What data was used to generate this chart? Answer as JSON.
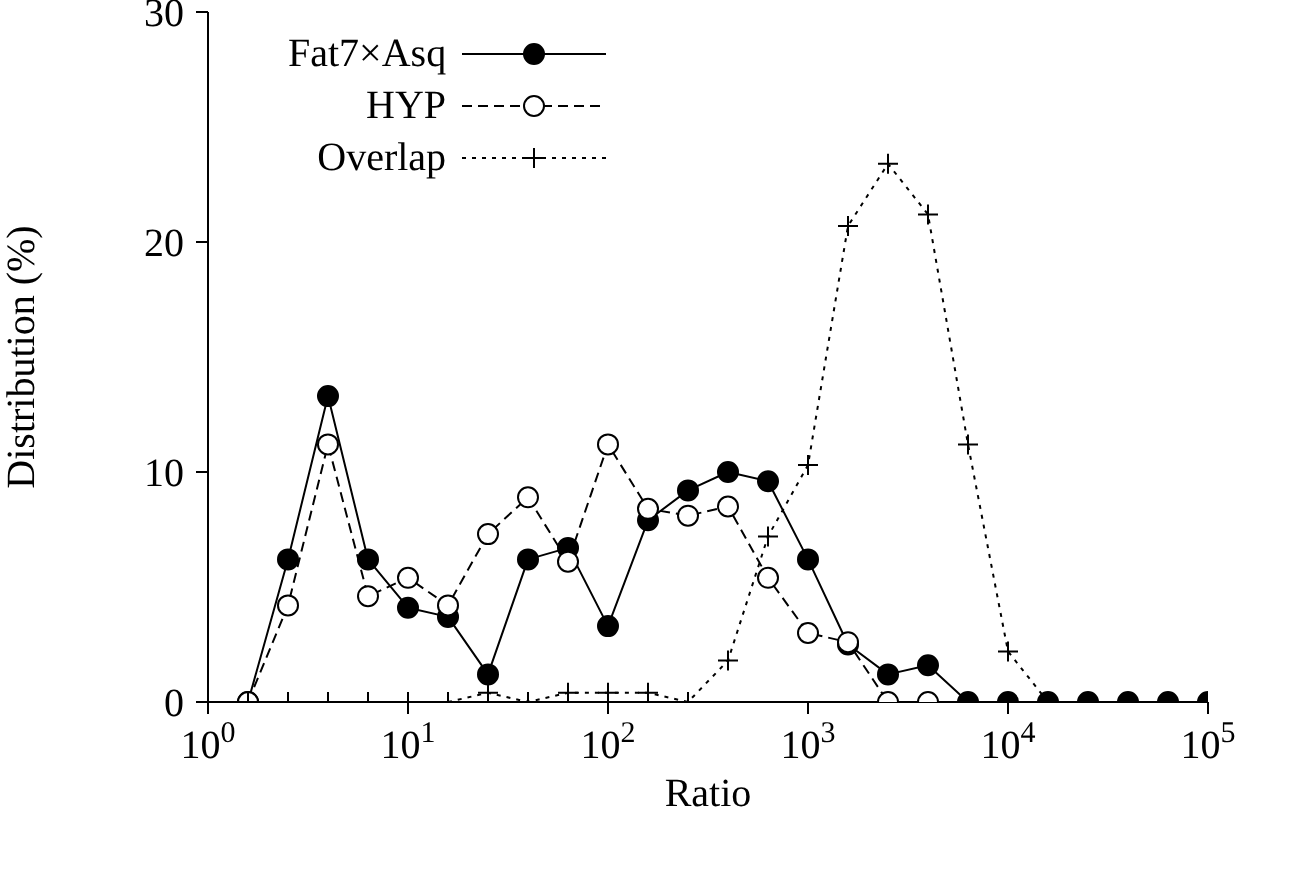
{
  "chart_data": {
    "type": "line",
    "xlabel": "Ratio",
    "ylabel": "Distribution (%)",
    "log": "x",
    "x": [
      1.585,
      2.512,
      3.981,
      6.31,
      10,
      15.85,
      25.12,
      39.81,
      63.1,
      100,
      158.5,
      251.2,
      398.1,
      631,
      1000,
      1585,
      2512,
      3981,
      6310,
      10000,
      15850,
      25120,
      39810,
      63100,
      100000
    ],
    "xlim": [
      1,
      100000
    ],
    "xticks": [
      {
        "value": 1,
        "label": "10$^{0}$"
      },
      {
        "value": 10,
        "label": "10$^{1}$"
      },
      {
        "value": 100,
        "label": "10$^{2}$"
      },
      {
        "value": 1000,
        "label": "10$^{3}$"
      },
      {
        "value": 10000,
        "label": "10$^{4}$"
      },
      {
        "value": 100000,
        "label": "10$^{5}$"
      }
    ],
    "ylim": [
      0,
      30
    ],
    "yticks": [
      0,
      10,
      20,
      30
    ],
    "grid": false,
    "legend": "top left",
    "series": [
      {
        "name": "Fat7×Asq",
        "color": "#000000",
        "marker": "circle",
        "line_style": "solid",
        "values": [
          0,
          6.2,
          13.3,
          6.2,
          4.1,
          3.7,
          1.2,
          6.2,
          6.7,
          3.3,
          7.9,
          9.2,
          10.0,
          9.6,
          6.2,
          2.5,
          1.2,
          1.6,
          0,
          0,
          0,
          0,
          0,
          0,
          0
        ]
      },
      {
        "name": "HYP",
        "color": "#000000",
        "marker": "circle",
        "line_style": "dashed",
        "values": [
          0,
          4.2,
          11.2,
          4.6,
          5.4,
          4.2,
          7.3,
          8.9,
          6.1,
          11.2,
          8.4,
          8.1,
          8.5,
          5.4,
          3.0,
          2.6,
          0,
          0,
          null,
          null,
          null,
          null,
          null,
          null,
          null
        ]
      },
      {
        "name": "Overlap",
        "color": "#000000",
        "marker": "cross",
        "line_style": "dotted",
        "values": [
          0,
          0,
          0,
          0,
          0,
          0,
          0.4,
          0,
          0.4,
          0.4,
          0.4,
          0,
          1.8,
          7.2,
          10.3,
          20.7,
          23.4,
          21.2,
          11.2,
          2.2,
          0,
          null,
          null,
          null,
          null
        ]
      }
    ]
  }
}
